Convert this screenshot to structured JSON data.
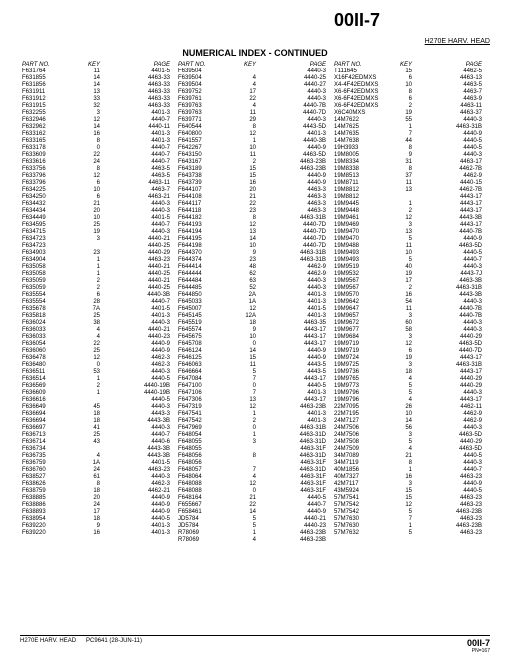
{
  "header": {
    "page_code": "00II-7",
    "model_label": "H270E  HARV. HEAD",
    "section_title": "NUMERICAL INDEX - CONTINUED",
    "col_headers": {
      "part": "PART NO.",
      "key": "KEY",
      "page": "PAGE"
    }
  },
  "footer": {
    "left_model": "H270E HARV. HEAD",
    "left_codes": "PC9641        (28-JUN-11)",
    "right_code": "00II-7",
    "right_sub": "PN=167"
  },
  "columns": [
    [
      [
        "F631764",
        "11",
        "4401-5"
      ],
      [
        "F631855",
        "14",
        "4463-33"
      ],
      [
        "F631856",
        "14",
        "4463-33"
      ],
      [
        "F631911",
        "13",
        "4463-33"
      ],
      [
        "F631912",
        "33",
        "4463-33"
      ],
      [
        "F631915",
        "32",
        "4463-33"
      ],
      [
        "F632255",
        "3",
        "4401-3"
      ],
      [
        "F632946",
        "12",
        "4440-7"
      ],
      [
        "F632962",
        "14",
        "4440-11"
      ],
      [
        "F633162",
        "16",
        "4401-3"
      ],
      [
        "F633165",
        "8",
        "4401-3"
      ],
      [
        "F633178",
        "0",
        "4440-7"
      ],
      [
        "F633609",
        "22",
        "4440-7"
      ],
      [
        "F633616",
        "24",
        "4440-7"
      ],
      [
        "F633756",
        "8",
        "4463-5"
      ],
      [
        "F633796",
        "12",
        "4463-5"
      ],
      [
        "F633796",
        "6",
        "4463-11"
      ],
      [
        "F634225",
        "10",
        "4463-7"
      ],
      [
        "F634250",
        "6",
        "4463-21"
      ],
      [
        "F634432",
        "21",
        "4440-3"
      ],
      [
        "F634434",
        "20",
        "4440-3"
      ],
      [
        "F634449",
        "10",
        "4401-5"
      ],
      [
        "F634595",
        "25",
        "4440-7"
      ],
      [
        "F634715",
        "19",
        "4440-3"
      ],
      [
        "F634723",
        "3",
        "4440-21"
      ],
      [
        "F634723",
        "",
        "4440-25"
      ],
      [
        "F634903",
        "23",
        "4440-29"
      ],
      [
        "F634904",
        "1",
        "4463-23"
      ],
      [
        "F635058",
        "1",
        "4440-21"
      ],
      [
        "F635058",
        "1",
        "4440-25"
      ],
      [
        "F635059",
        "2",
        "4440-21"
      ],
      [
        "F635059",
        "2",
        "4440-25"
      ],
      [
        "F635554",
        "6",
        "4440-3B"
      ],
      [
        "F635554",
        "28",
        "4440-7"
      ],
      [
        "F635678",
        "7A",
        "4401-5"
      ],
      [
        "F635818",
        "25",
        "4401-3"
      ],
      [
        "F636024",
        "38",
        "4440-3"
      ],
      [
        "F636033",
        "4",
        "4440-21"
      ],
      [
        "F636033",
        "4",
        "4440-23"
      ],
      [
        "F636054",
        "22",
        "4440-9"
      ],
      [
        "F636060",
        "25",
        "4440-9"
      ],
      [
        "F636478",
        "12",
        "4462-3"
      ],
      [
        "F636480",
        "0",
        "4462-3"
      ],
      [
        "F636511",
        "53",
        "4440-3"
      ],
      [
        "F636514",
        "1",
        "4440-5"
      ],
      [
        "F636569",
        "2",
        "4440-19B"
      ],
      [
        "F636609",
        "1",
        "4440-19B"
      ],
      [
        "F636616",
        "",
        "4440-5"
      ],
      [
        "F636649",
        "45",
        "4440-3"
      ],
      [
        "F636694",
        "18",
        "4443-3"
      ],
      [
        "F636694",
        "18",
        "4443-3B"
      ],
      [
        "F636697",
        "41",
        "4440-3"
      ],
      [
        "F636713",
        "25",
        "4440-7"
      ],
      [
        "F636714",
        "43",
        "4440-6"
      ],
      [
        "F636734",
        "",
        "4443-3B"
      ],
      [
        "F636735",
        "4",
        "4443-3B"
      ],
      [
        "F636759",
        "1A",
        "4401-5"
      ],
      [
        "F636760",
        "24",
        "4463-23"
      ],
      [
        "F638527",
        "61",
        "4440-3"
      ],
      [
        "F638626",
        "8",
        "4462-3"
      ],
      [
        "F638759",
        "18",
        "4462-21"
      ],
      [
        "F638885",
        "20",
        "4440-9"
      ],
      [
        "F638886",
        "24",
        "4440-9"
      ],
      [
        "F638893",
        "17",
        "4440-9"
      ],
      [
        "F638954",
        "18",
        "4440-5"
      ],
      [
        "F639220",
        "9",
        "4401-3"
      ],
      [
        "F639220",
        "16",
        "4401-3"
      ]
    ],
    [
      [
        "F639504",
        "",
        "4440-3"
      ],
      [
        "F639504",
        "4",
        "4440-25"
      ],
      [
        "F639504",
        "4",
        "4440-27"
      ],
      [
        "F639752",
        "17",
        "4440-3"
      ],
      [
        "F639761",
        "22",
        "4440-3"
      ],
      [
        "F639763",
        "4",
        "4440-7B"
      ],
      [
        "F639763",
        "11",
        "4440-7D"
      ],
      [
        "F639771",
        "29",
        "4440-3"
      ],
      [
        "F640544",
        "8",
        "4443-5D"
      ],
      [
        "F640800",
        "12",
        "4401-3"
      ],
      [
        "F641557",
        "1",
        "4440-3B"
      ],
      [
        "F642267",
        "10",
        "4440-9"
      ],
      [
        "F643150",
        "11",
        "4463-5D"
      ],
      [
        "F643167",
        "2",
        "4463-23B"
      ],
      [
        "F643189",
        "15",
        "4463-23B"
      ],
      [
        "F643738",
        "15",
        "4440-9"
      ],
      [
        "F643739",
        "16",
        "4440-9"
      ],
      [
        "F644107",
        "20",
        "4463-3"
      ],
      [
        "F644108",
        "21",
        "4463-3"
      ],
      [
        "F644117",
        "22",
        "4463-3"
      ],
      [
        "F644118",
        "23",
        "4463-3"
      ],
      [
        "F644182",
        "8",
        "4463-31B"
      ],
      [
        "F644193",
        "12",
        "4440-7D"
      ],
      [
        "F644194",
        "13",
        "4440-7D"
      ],
      [
        "F644195",
        "14",
        "4440-7D"
      ],
      [
        "F644198",
        "10",
        "4440-7D"
      ],
      [
        "F644370",
        "9",
        "4463-31B"
      ],
      [
        "F644374",
        "23",
        "4463-31B"
      ],
      [
        "F644414",
        "48",
        "4462-9"
      ],
      [
        "F644444",
        "62",
        "4462-9"
      ],
      [
        "F644484",
        "63",
        "4440-3"
      ],
      [
        "F644485",
        "52",
        "4440-3"
      ],
      [
        "F644850",
        "2A",
        "4401-3"
      ],
      [
        "F645033",
        "1A",
        "4401-3"
      ],
      [
        "F645007",
        "12",
        "4401-5"
      ],
      [
        "F645145",
        "12A",
        "4401-3"
      ],
      [
        "F645519",
        "18",
        "4463-35"
      ],
      [
        "F645574",
        "9",
        "4443-17"
      ],
      [
        "F645675",
        "10",
        "4443-17"
      ],
      [
        "F645708",
        "0",
        "4443-17"
      ],
      [
        "F646124",
        "14",
        "4440-9"
      ],
      [
        "F646125",
        "15",
        "4440-9"
      ],
      [
        "F646063",
        "11",
        "4443-5"
      ],
      [
        "F646664",
        "5",
        "4443-5"
      ],
      [
        "F647084",
        "7",
        "4443-17"
      ],
      [
        "F647100",
        "0",
        "4440-5"
      ],
      [
        "F647106",
        "7",
        "4401-3"
      ],
      [
        "F647306",
        "13",
        "4443-17"
      ],
      [
        "F647319",
        "12",
        "4463-23B"
      ],
      [
        "F647541",
        "1",
        "4401-3"
      ],
      [
        "F647542",
        "2",
        "4401-3"
      ],
      [
        "F647969",
        "0",
        "4463-31B"
      ],
      [
        "F648054",
        "1",
        "4463-31D"
      ],
      [
        "F648055",
        "3",
        "4463-31D"
      ],
      [
        "F648055",
        "",
        "4463-31F"
      ],
      [
        "F648056",
        "8",
        "4463-31D"
      ],
      [
        "F648056",
        "",
        "4463-31F"
      ],
      [
        "F648057",
        "7",
        "4463-31D"
      ],
      [
        "F648064",
        "4",
        "4463-31F"
      ],
      [
        "F648088",
        "12",
        "4463-31F"
      ],
      [
        "F648088",
        "0",
        "4463-31F"
      ],
      [
        "F648164",
        "21",
        "4440-5"
      ],
      [
        "F655667",
        "22",
        "4440-7"
      ],
      [
        "F658461",
        "14",
        "4440-9"
      ],
      [
        "JD5784",
        "5",
        "4440-21"
      ],
      [
        "JD5784",
        "5",
        "4440-23"
      ],
      [
        "R78069",
        "1",
        "4463-23B"
      ],
      [
        "R78069",
        "4",
        "4463-23B"
      ]
    ],
    [
      [
        "T111645",
        "15",
        "4462-5"
      ],
      [
        "X16F42EDMXS",
        "6",
        "4463-13"
      ],
      [
        "X4-4F42EDMXS",
        "10",
        "4463-5"
      ],
      [
        "X6-6F42EDMXS",
        "8",
        "4463-7"
      ],
      [
        "X6-6F42EDMXS",
        "6",
        "4463-9"
      ],
      [
        "X6-6F42EDMXS",
        "2",
        "4463-11"
      ],
      [
        "X6C40MXS",
        "19",
        "4463-37"
      ],
      [
        "14M7622",
        "55",
        "4440-3"
      ],
      [
        "14M7625",
        "1",
        "4463-31B"
      ],
      [
        "14M7635",
        "7",
        "4440-9"
      ],
      [
        "14M7638",
        "44",
        "4440-5"
      ],
      [
        "19H3933",
        "8",
        "4440-5"
      ],
      [
        "19M8005",
        "9",
        "4440-3"
      ],
      [
        "19M8334",
        "31",
        "4463-17"
      ],
      [
        "19M8338",
        "8",
        "4462-7B"
      ],
      [
        "19M8513",
        "37",
        "4462-9"
      ],
      [
        "19M8711",
        "11",
        "4440-15"
      ],
      [
        "19M8812",
        "13",
        "4462-7B"
      ],
      [
        "19M8812",
        "",
        "4443-17"
      ],
      [
        "19M9445",
        "1",
        "4443-17"
      ],
      [
        "19M9448",
        "2",
        "4443-17"
      ],
      [
        "19M9461",
        "12",
        "4443-3B"
      ],
      [
        "19M9469",
        "3",
        "4443-17"
      ],
      [
        "19M9470",
        "13",
        "4440-7B"
      ],
      [
        "19M9470",
        "5",
        "4440-9"
      ],
      [
        "19M9488",
        "11",
        "4463-5D"
      ],
      [
        "19M9493",
        "10",
        "4440-5"
      ],
      [
        "19M9493",
        "5",
        "4440-7"
      ],
      [
        "19M9519",
        "40",
        "4440-3"
      ],
      [
        "19M9532",
        "19",
        "4443-7J"
      ],
      [
        "19M9567",
        "17",
        "4463-3B"
      ],
      [
        "19M9567",
        "2",
        "4463-31B"
      ],
      [
        "19M9570",
        "16",
        "4443-3B"
      ],
      [
        "19M9642",
        "54",
        "4440-3"
      ],
      [
        "19M9647",
        "11",
        "4440-7B"
      ],
      [
        "19M9657",
        "3",
        "4440-7B"
      ],
      [
        "19M9672",
        "60",
        "4440-3"
      ],
      [
        "19M9677",
        "58",
        "4440-3"
      ],
      [
        "19M9684",
        "3",
        "4440-29"
      ],
      [
        "19M9719",
        "12",
        "4463-5D"
      ],
      [
        "19M9719",
        "6",
        "4440-7D"
      ],
      [
        "19M9724",
        "19",
        "4443-17"
      ],
      [
        "19M9725",
        "3",
        "4463-31B"
      ],
      [
        "19M9736",
        "18",
        "4443-17"
      ],
      [
        "19M9765",
        "4",
        "4440-29"
      ],
      [
        "19M9773",
        "5",
        "4440-29"
      ],
      [
        "19M9796",
        "5",
        "4440-3"
      ],
      [
        "19M9796",
        "4",
        "4443-17"
      ],
      [
        "22M7095",
        "26",
        "4462-11"
      ],
      [
        "22M7195",
        "10",
        "4462-9"
      ],
      [
        "24M7127",
        "14",
        "4462-9"
      ],
      [
        "24M7506",
        "56",
        "4440-3"
      ],
      [
        "24M7506",
        "3",
        "4463-5D"
      ],
      [
        "24M7508",
        "5",
        "4440-29"
      ],
      [
        "24M7509",
        "4",
        "4463-5D"
      ],
      [
        "34M7089",
        "21",
        "4440-5"
      ],
      [
        "34M7119",
        "8",
        "4440-3"
      ],
      [
        "40M1856",
        "1",
        "4440-7"
      ],
      [
        "40M7327",
        "16",
        "4463-23"
      ],
      [
        "42M7117",
        "3",
        "4440-9"
      ],
      [
        "43M5924",
        "15",
        "4440-5"
      ],
      [
        "57M7541",
        "15",
        "4463-23"
      ],
      [
        "57M7542",
        "12",
        "4463-23"
      ],
      [
        "57M7542",
        "5",
        "4463-23B"
      ],
      [
        "57M7630",
        "7",
        "4463-23"
      ],
      [
        "57M7630",
        "1",
        "4463-23B"
      ],
      [
        "57M7632",
        "5",
        "4463-23"
      ]
    ]
  ]
}
